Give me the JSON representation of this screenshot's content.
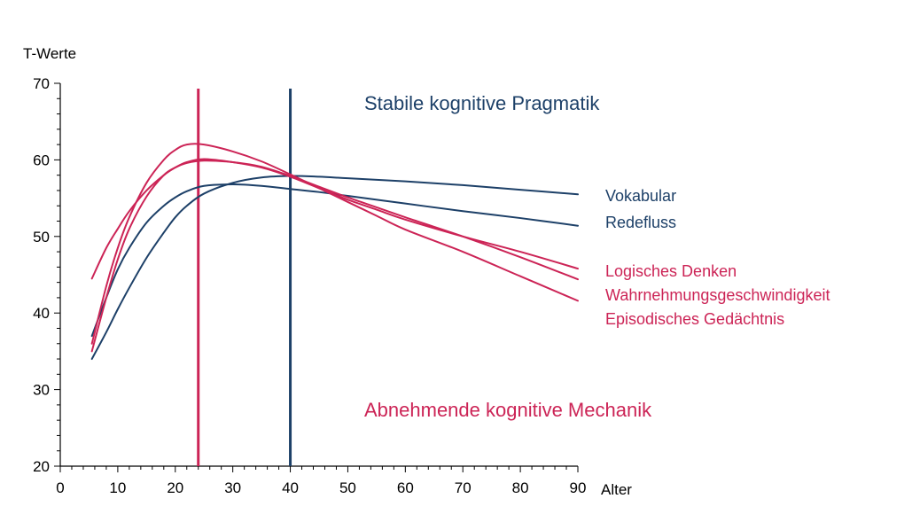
{
  "chart_data": {
    "type": "line",
    "ylabel": "T-Werte",
    "xlabel": "Alter",
    "xlim": [
      0,
      90
    ],
    "ylim": [
      20,
      70
    ],
    "x_ticks": [
      0,
      10,
      20,
      30,
      40,
      50,
      60,
      70,
      80,
      90
    ],
    "y_ticks": [
      20,
      30,
      40,
      50,
      60,
      70
    ],
    "x_minor_step": 2,
    "y_minor_step": 2,
    "colors": {
      "pragmatik": "#1d4068",
      "mechanik": "#cc2456"
    },
    "annotations": {
      "pragmatik": "Stabile kognitive Pragmatik",
      "mechanik": "Abnehmende kognitive Mechanik"
    },
    "reference_lines": [
      {
        "x": 24,
        "group": "mechanik"
      },
      {
        "x": 40,
        "group": "pragmatik"
      }
    ],
    "series": [
      {
        "name": "Vokabular",
        "group": "pragmatik",
        "x": [
          5.5,
          8,
          10,
          12,
          15,
          18,
          20,
          22,
          25,
          30,
          35,
          40,
          45,
          50,
          60,
          70,
          80,
          90
        ],
        "y": [
          34,
          37.5,
          40.5,
          43.3,
          47.2,
          50.5,
          52.5,
          54,
          55.6,
          57,
          57.7,
          57.9,
          57.8,
          57.6,
          57.2,
          56.7,
          56.1,
          55.5
        ]
      },
      {
        "name": "Redefluss",
        "group": "pragmatik",
        "x": [
          5.5,
          8,
          10,
          12,
          15,
          18,
          20,
          22,
          25,
          30,
          35,
          40,
          45,
          50,
          60,
          70,
          80,
          90
        ],
        "y": [
          37,
          42,
          45.7,
          48.5,
          51.8,
          54,
          55.1,
          55.9,
          56.6,
          56.8,
          56.6,
          56.2,
          55.8,
          55.3,
          54.3,
          53.3,
          52.4,
          51.4
        ]
      },
      {
        "name": "Logisches Denken",
        "group": "mechanik",
        "x": [
          5.5,
          8,
          10,
          12,
          15,
          18,
          20,
          22,
          25,
          30,
          35,
          40,
          45,
          50,
          55,
          60,
          70,
          80,
          90
        ],
        "y": [
          44.5,
          48.5,
          51,
          53.3,
          56,
          58,
          59,
          59.7,
          60.1,
          59.7,
          59,
          57.8,
          56.3,
          54.8,
          53.5,
          52.2,
          50,
          48,
          45.8
        ]
      },
      {
        "name": "Wahrnehmungsgeschwindigkeit",
        "group": "mechanik",
        "x": [
          5.5,
          8,
          10,
          12,
          15,
          18,
          20,
          22,
          25,
          30,
          35,
          40,
          45,
          50,
          55,
          60,
          70,
          80,
          90
        ],
        "y": [
          35,
          42,
          47,
          51,
          55.2,
          58,
          59,
          59.6,
          59.9,
          59.7,
          59.1,
          57.9,
          56.5,
          55.1,
          53.8,
          52.5,
          50,
          47.3,
          44.4
        ]
      },
      {
        "name": "Episodisches Gedächtnis",
        "group": "mechanik",
        "x": [
          5.5,
          8,
          10,
          12,
          15,
          18,
          20,
          22,
          25,
          30,
          35,
          40,
          45,
          50,
          55,
          60,
          70,
          80,
          90
        ],
        "y": [
          36,
          43.5,
          48.5,
          52.5,
          57,
          60,
          61.3,
          62,
          62,
          61.1,
          59.8,
          58.1,
          56.3,
          54.5,
          52.7,
          50.9,
          48,
          44.8,
          41.6
        ]
      }
    ],
    "legend_labels": [
      {
        "text": "Vokabular",
        "group": "pragmatik"
      },
      {
        "text": "Redefluss",
        "group": "pragmatik"
      },
      {
        "text": "Logisches Denken",
        "group": "mechanik"
      },
      {
        "text": "Wahrnehmungsgeschwindigkeit",
        "group": "mechanik"
      },
      {
        "text": "Episodisches Gedächtnis",
        "group": "mechanik"
      }
    ]
  }
}
